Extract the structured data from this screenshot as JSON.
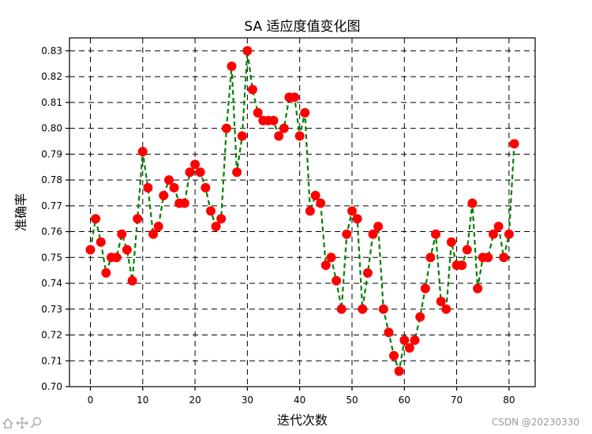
{
  "chart_data": {
    "type": "line",
    "title": "SA 适应度值变化图",
    "xlabel": "迭代次数",
    "ylabel": "准确率",
    "xlim": [
      -4,
      85
    ],
    "ylim": [
      0.7,
      0.835
    ],
    "x_ticks": [
      0,
      10,
      20,
      30,
      40,
      50,
      60,
      70,
      80
    ],
    "y_ticks": [
      0.7,
      0.71,
      0.72,
      0.73,
      0.74,
      0.75,
      0.76,
      0.77,
      0.78,
      0.79,
      0.8,
      0.81,
      0.82,
      0.83
    ],
    "grid": true,
    "line_color": "#008000",
    "marker_color": "#ff0000",
    "line_style": "dashed",
    "x": [
      0,
      1,
      2,
      3,
      4,
      5,
      6,
      7,
      8,
      9,
      10,
      11,
      12,
      13,
      14,
      15,
      16,
      17,
      18,
      19,
      20,
      21,
      22,
      23,
      24,
      25,
      26,
      27,
      28,
      29,
      30,
      31,
      32,
      33,
      34,
      35,
      36,
      37,
      38,
      39,
      40,
      41,
      42,
      43,
      44,
      45,
      46,
      47,
      48,
      49,
      50,
      51,
      52,
      53,
      54,
      55,
      56,
      57,
      58,
      59,
      60,
      61,
      62,
      63,
      64,
      65,
      66,
      67,
      68,
      69,
      70,
      71,
      72,
      73,
      74,
      75,
      76,
      77,
      78,
      79,
      80,
      81
    ],
    "values": [
      0.753,
      0.765,
      0.756,
      0.744,
      0.75,
      0.75,
      0.759,
      0.753,
      0.741,
      0.765,
      0.791,
      0.777,
      0.759,
      0.762,
      0.774,
      0.78,
      0.777,
      0.771,
      0.771,
      0.783,
      0.786,
      0.783,
      0.777,
      0.768,
      0.762,
      0.765,
      0.8,
      0.824,
      0.783,
      0.797,
      0.83,
      0.815,
      0.806,
      0.803,
      0.803,
      0.803,
      0.797,
      0.8,
      0.812,
      0.812,
      0.797,
      0.806,
      0.768,
      0.774,
      0.771,
      0.747,
      0.75,
      0.741,
      0.73,
      0.759,
      0.768,
      0.765,
      0.73,
      0.744,
      0.759,
      0.762,
      0.73,
      0.721,
      0.712,
      0.706,
      0.718,
      0.715,
      0.718,
      0.727,
      0.738,
      0.75,
      0.759,
      0.733,
      0.73,
      0.756,
      0.747,
      0.747,
      0.753,
      0.771,
      0.738,
      0.75,
      0.75,
      0.759,
      0.762,
      0.75,
      0.759,
      0.794
    ]
  },
  "watermark": "CSDN @20230330",
  "toolbar": {
    "icons": [
      "home-icon",
      "move-icon",
      "zoom-icon"
    ]
  }
}
